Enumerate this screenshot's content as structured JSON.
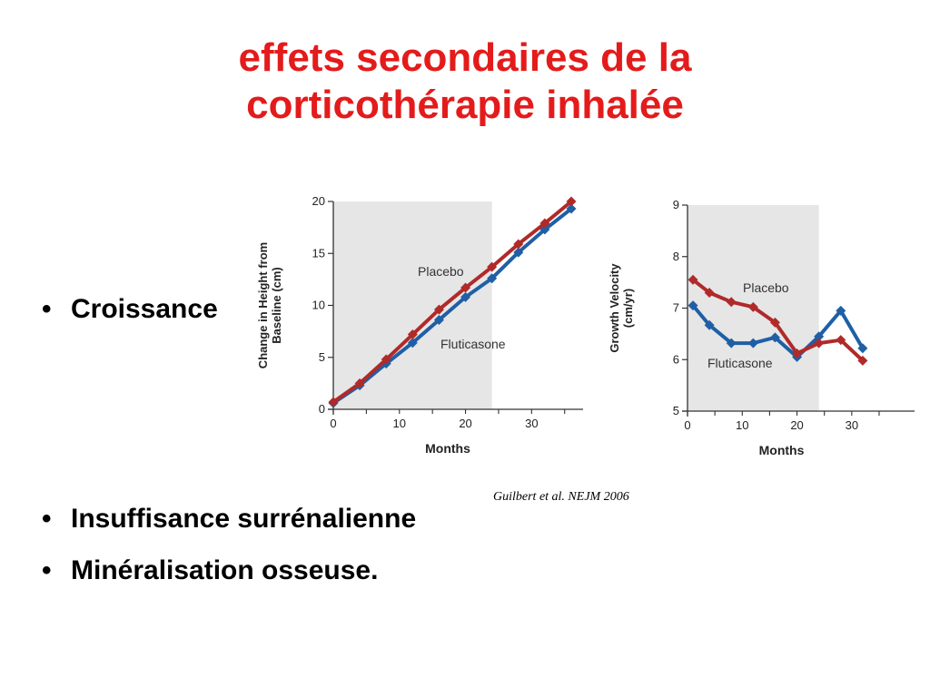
{
  "slide": {
    "title_line1": "effets secondaires de la",
    "title_line2": "corticothérapie inhalée",
    "colors": {
      "title": "#e41b1b",
      "placebo": "#b02a2a",
      "fluticasone": "#1f5fa6",
      "shade": "#e6e6e6"
    }
  },
  "bullets": [
    {
      "bullet": "•",
      "text": "Croissance"
    },
    {
      "bullet": "•",
      "text": "Insuffisance surrénalienne"
    },
    {
      "bullet": "•",
      "text": "Minéralisation osseuse."
    }
  ],
  "citation": "Guilbert et al. NEJM 2006",
  "chart_data": [
    {
      "type": "line",
      "ylabel_line1": "Change in Height from",
      "ylabel_line2": "Baseline (cm)",
      "xlabel": "Months",
      "xlim": [
        0,
        36
      ],
      "ylim": [
        0,
        20
      ],
      "xticks": [
        0,
        10,
        20,
        30
      ],
      "yticks": [
        0,
        5,
        10,
        15,
        20
      ],
      "shaded_region": [
        0,
        24
      ],
      "x": [
        0,
        4,
        8,
        12,
        16,
        20,
        24,
        28,
        32,
        36
      ],
      "series": [
        {
          "name": "Placebo",
          "values": [
            0.7,
            2.5,
            4.8,
            7.2,
            9.6,
            11.7,
            13.7,
            15.9,
            17.9,
            20.0
          ]
        },
        {
          "name": "Fluticasone",
          "values": [
            0.6,
            2.3,
            4.4,
            6.4,
            8.6,
            10.8,
            12.6,
            15.1,
            17.3,
            19.3
          ]
        }
      ]
    },
    {
      "type": "line",
      "ylabel_line1": "Growth Velocity",
      "ylabel_line2": "(cm/yr)",
      "xlabel": "Months",
      "xlim": [
        0,
        36
      ],
      "ylim": [
        5,
        9
      ],
      "xticks": [
        0,
        10,
        20,
        30
      ],
      "yticks": [
        5,
        6,
        7,
        8,
        9
      ],
      "shaded_region": [
        0,
        24
      ],
      "x": [
        1,
        4,
        8,
        12,
        16,
        20,
        24,
        28,
        32
      ],
      "series": [
        {
          "name": "Placebo",
          "values": [
            7.55,
            7.3,
            7.12,
            7.02,
            6.72,
            6.12,
            6.32,
            6.38,
            5.98
          ]
        },
        {
          "name": "Fluticasone",
          "values": [
            7.05,
            6.67,
            6.32,
            6.32,
            6.43,
            6.05,
            6.45,
            6.95,
            6.22
          ]
        }
      ]
    }
  ]
}
